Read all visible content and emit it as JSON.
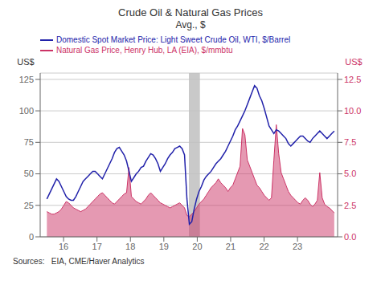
{
  "chart_data": {
    "type": "line",
    "title": "Crude Oil & Natural Gas Prices",
    "subtitle": "Avg., $",
    "ylabel": "US$",
    "y2label": "US$",
    "source": "Sources:   EIA, CME/Haver Analytics",
    "x": [
      15.5,
      15.5723,
      15.6445,
      15.7168,
      15.7891,
      15.8613,
      15.9336,
      16.0059,
      16.0782,
      16.1504,
      16.2227,
      16.295,
      16.3672,
      16.4395,
      16.5118,
      16.584,
      16.6563,
      16.7286,
      16.8008,
      16.8731,
      16.9454,
      17.0176,
      17.0899,
      17.1622,
      17.2345,
      17.3067,
      17.379,
      17.4513,
      17.5235,
      17.5958,
      17.6681,
      17.7403,
      17.8126,
      17.8849,
      17.9571,
      18.0294,
      18.1017,
      18.1739,
      18.2462,
      18.3185,
      18.3908,
      18.463,
      18.5353,
      18.6076,
      18.6798,
      18.7521,
      18.8244,
      18.8966,
      18.9689,
      19.0412,
      19.1134,
      19.1857,
      19.258,
      19.3303,
      19.4025,
      19.4748,
      19.5471,
      19.6193,
      19.6916,
      19.7639,
      19.8361,
      19.9084,
      19.9807,
      20.0529,
      20.1252,
      20.1975,
      20.2697,
      20.342,
      20.4143,
      20.4866,
      20.5588,
      20.6311,
      20.7034,
      20.7756,
      20.8479,
      20.9202,
      20.9924,
      21.0647,
      21.137,
      21.2092,
      21.2815,
      21.3538,
      21.4261,
      21.4983,
      21.5706,
      21.6429,
      21.7151,
      21.7874,
      21.8597,
      21.9319,
      22.0042,
      22.0765,
      22.1487,
      22.221,
      22.2933,
      22.3655,
      22.4378,
      22.5101,
      22.5824,
      22.6546,
      22.7269,
      22.7992,
      22.8714,
      22.9437,
      23.016,
      23.0882,
      23.1605,
      23.2328,
      23.305,
      23.3773,
      23.4496,
      23.5218,
      23.5941,
      23.6664,
      23.7387,
      23.8109,
      23.8832,
      23.9555,
      24.0277,
      24.1
    ],
    "xlim": [
      15.3,
      24.2
    ],
    "xticks": [
      16,
      17,
      18,
      19,
      20,
      21,
      22,
      23
    ],
    "ylim": [
      0,
      130
    ],
    "yticks": [
      0,
      25,
      50,
      75,
      100,
      125
    ],
    "y2lim": [
      0,
      13
    ],
    "y2ticks": [
      {
        "value": 0,
        "label": "0.0"
      },
      2.5,
      {
        "value": 5,
        "label": "5.0"
      },
      7.5,
      {
        "value": 10,
        "label": "10.0"
      },
      12.5
    ],
    "grid": true,
    "legend": "top",
    "shaded_region": {
      "x": [
        19.75,
        20.08
      ],
      "color": "#c0c0c0"
    },
    "series": [
      {
        "name": "Domestic Spot Market Price: Light Sweet Crude Oil, WTI, $/Barrel",
        "type": "line",
        "color": "#2222aa",
        "values": [
          30,
          34,
          38,
          42,
          46,
          44,
          40,
          36,
          32,
          30,
          29,
          29,
          32,
          36,
          40,
          44,
          46,
          48,
          50,
          52,
          52,
          50,
          48,
          46,
          50,
          54,
          58,
          62,
          67,
          70,
          71,
          68,
          65,
          60,
          52,
          44,
          47,
          50,
          52,
          55,
          56,
          60,
          63,
          66,
          65,
          62,
          58,
          52,
          55,
          58,
          62,
          65,
          67,
          70,
          71,
          72,
          70,
          65,
          30,
          10,
          12,
          22,
          30,
          36,
          40,
          45,
          48,
          50,
          52,
          55,
          58,
          60,
          62,
          65,
          68,
          72,
          76,
          80,
          85,
          88,
          92,
          96,
          100,
          105,
          110,
          115,
          120,
          118,
          112,
          108,
          102,
          95,
          88,
          85,
          82,
          85,
          84,
          82,
          80,
          78,
          74,
          72,
          74,
          76,
          78,
          80,
          80,
          78,
          76,
          75,
          78,
          80,
          82,
          84,
          82,
          80,
          78,
          80,
          82,
          84
        ]
      },
      {
        "name": "Natural Gas Price, Henry Hub, LA (EIA), $/mmbtu",
        "type": "area",
        "axis": "y2",
        "color": "#cc3366",
        "values": [
          2.0,
          1.9,
          1.8,
          1.8,
          1.9,
          2.0,
          2.2,
          2.5,
          2.8,
          2.7,
          2.5,
          2.3,
          2.2,
          2.1,
          2.0,
          2.1,
          2.2,
          2.4,
          2.6,
          2.8,
          3.0,
          3.2,
          3.4,
          3.5,
          3.3,
          3.1,
          2.9,
          2.7,
          2.6,
          2.8,
          3.0,
          3.2,
          3.4,
          3.5,
          5.5,
          3.2,
          3.0,
          2.8,
          2.7,
          2.6,
          2.8,
          3.0,
          3.3,
          3.5,
          3.3,
          3.1,
          2.9,
          2.7,
          2.6,
          2.5,
          2.4,
          2.3,
          2.4,
          2.5,
          2.6,
          2.7,
          2.5,
          2.3,
          1.7,
          1.6,
          1.8,
          2.0,
          2.3,
          2.6,
          2.8,
          3.0,
          3.3,
          3.6,
          3.9,
          4.1,
          4.3,
          4.6,
          4.3,
          4.1,
          3.9,
          3.6,
          3.9,
          4.1,
          4.6,
          5.1,
          5.6,
          8.6,
          8.1,
          6.1,
          5.6,
          5.1,
          4.6,
          4.1,
          3.9,
          3.6,
          3.3,
          3.1,
          2.9,
          3.1,
          6.1,
          8.9,
          6.6,
          5.1,
          4.6,
          4.1,
          3.6,
          3.3,
          3.1,
          2.9,
          2.7,
          2.6,
          2.9,
          3.1,
          2.9,
          2.6,
          2.4,
          2.6,
          2.9,
          5.1,
          3.1,
          2.6,
          2.4,
          2.3,
          2.1,
          1.9
        ]
      }
    ]
  }
}
